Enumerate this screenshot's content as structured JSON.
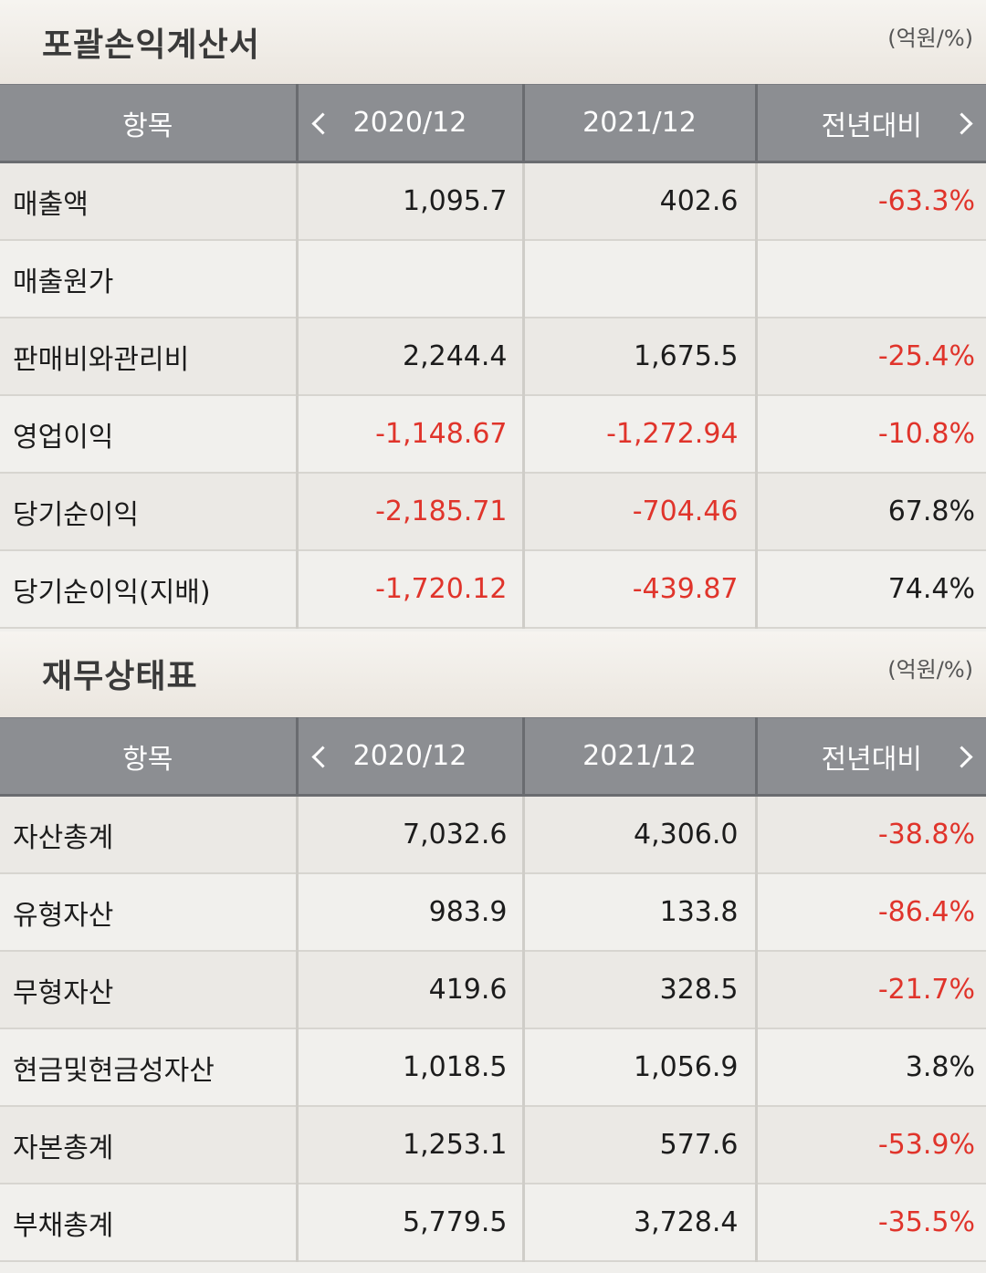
{
  "income": {
    "title": "포괄손익계산서",
    "unit": "(억원/%)",
    "headers": [
      "항목",
      "2020/12",
      "2021/12",
      "전년대비"
    ],
    "rows": [
      {
        "label": "매출액",
        "y2020": "1,095.7",
        "y2021": "402.6",
        "yoy": "-63.3%"
      },
      {
        "label": "매출원가",
        "y2020": "",
        "y2021": "",
        "yoy": ""
      },
      {
        "label": "판매비와관리비",
        "y2020": "2,244.4",
        "y2021": "1,675.5",
        "yoy": "-25.4%"
      },
      {
        "label": "영업이익",
        "y2020": "-1,148.67",
        "y2021": "-1,272.94",
        "yoy": "-10.8%"
      },
      {
        "label": "당기순이익",
        "y2020": "-2,185.71",
        "y2021": "-704.46",
        "yoy": "67.8%"
      },
      {
        "label": "당기순이익(지배)",
        "y2020": "-1,720.12",
        "y2021": "-439.87",
        "yoy": "74.4%"
      }
    ]
  },
  "balance": {
    "title": "재무상태표",
    "unit": "(억원/%)",
    "headers": [
      "항목",
      "2020/12",
      "2021/12",
      "전년대비"
    ],
    "rows": [
      {
        "label": "자산총계",
        "y2020": "7,032.6",
        "y2021": "4,306.0",
        "yoy": "-38.8%"
      },
      {
        "label": "유형자산",
        "y2020": "983.9",
        "y2021": "133.8",
        "yoy": "-86.4%"
      },
      {
        "label": "무형자산",
        "y2020": "419.6",
        "y2021": "328.5",
        "yoy": "-21.7%"
      },
      {
        "label": "현금및현금성자산",
        "y2020": "1,018.5",
        "y2021": "1,056.9",
        "yoy": "3.8%"
      },
      {
        "label": "자본총계",
        "y2020": "1,253.1",
        "y2021": "577.6",
        "yoy": "-53.9%"
      },
      {
        "label": "부채총계",
        "y2020": "5,779.5",
        "y2021": "3,728.4",
        "yoy": "-35.5%"
      }
    ]
  },
  "colors": {
    "negative": "#e0342b",
    "header_bg": "#8c8e92"
  }
}
